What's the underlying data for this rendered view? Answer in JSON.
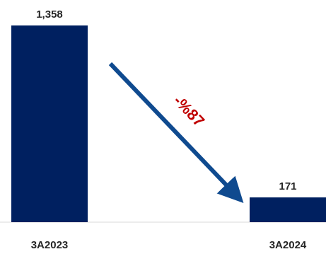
{
  "chart_data": {
    "type": "bar",
    "categories": [
      "3A2023",
      "3A2024"
    ],
    "values": [
      1358,
      171
    ],
    "value_labels": [
      "1,358",
      "171"
    ],
    "ylim": [
      0,
      1358
    ],
    "grid": false,
    "legend": "none",
    "annotation": {
      "text": "-%87",
      "from_category": "3A2023",
      "to_category": "3A2024"
    },
    "colors": {
      "bar": "#002060",
      "arrow": "#0F4A8F",
      "annotation_text": "#C00000",
      "label_text": "#262626",
      "baseline": "#D9D9D9"
    }
  }
}
